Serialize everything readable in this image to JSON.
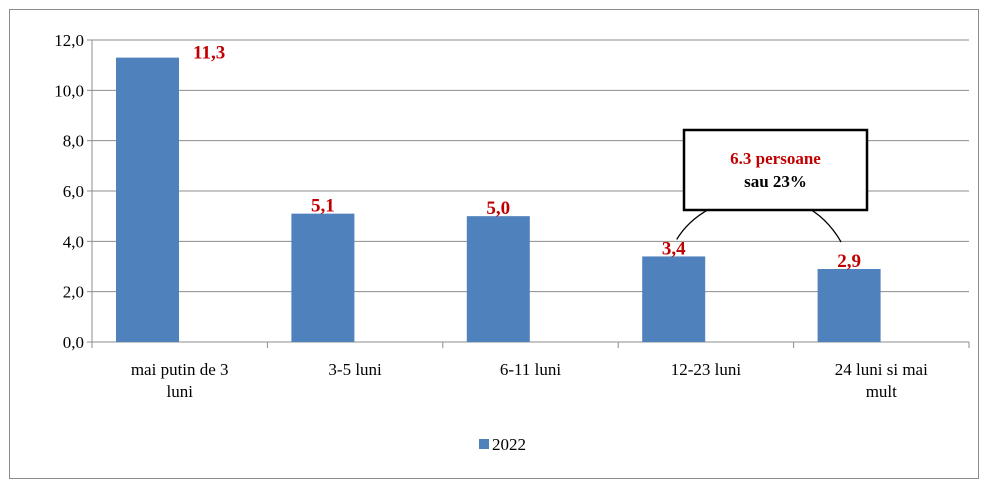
{
  "chart_data": {
    "type": "bar",
    "categories": [
      [
        "mai putin de 3",
        "luni"
      ],
      [
        "3-5 luni"
      ],
      [
        "6-11 luni"
      ],
      [
        "12-23 luni"
      ],
      [
        "24 luni si mai",
        "mult"
      ]
    ],
    "series": [
      {
        "name": "2022",
        "values": [
          11.3,
          5.1,
          5.0,
          3.4,
          2.9
        ],
        "color": "#4f81bd"
      }
    ],
    "data_labels": [
      "11,3",
      "5,1",
      "5,0",
      "3,4",
      "2,9"
    ],
    "data_label_color": "#c00000",
    "ylim": [
      0,
      12
    ],
    "yticks": [
      0,
      2,
      4,
      6,
      8,
      10,
      12
    ],
    "ytick_labels": [
      "0,0",
      "2,0",
      "4,0",
      "6,0",
      "8,0",
      "10,0",
      "12,0"
    ],
    "grid": true,
    "legend_position": "bottom",
    "annotation": {
      "line1": "6.3 persoane",
      "line2": "sau 23%",
      "connects": [
        "12-23 luni",
        "24 luni si mai mult"
      ]
    }
  }
}
